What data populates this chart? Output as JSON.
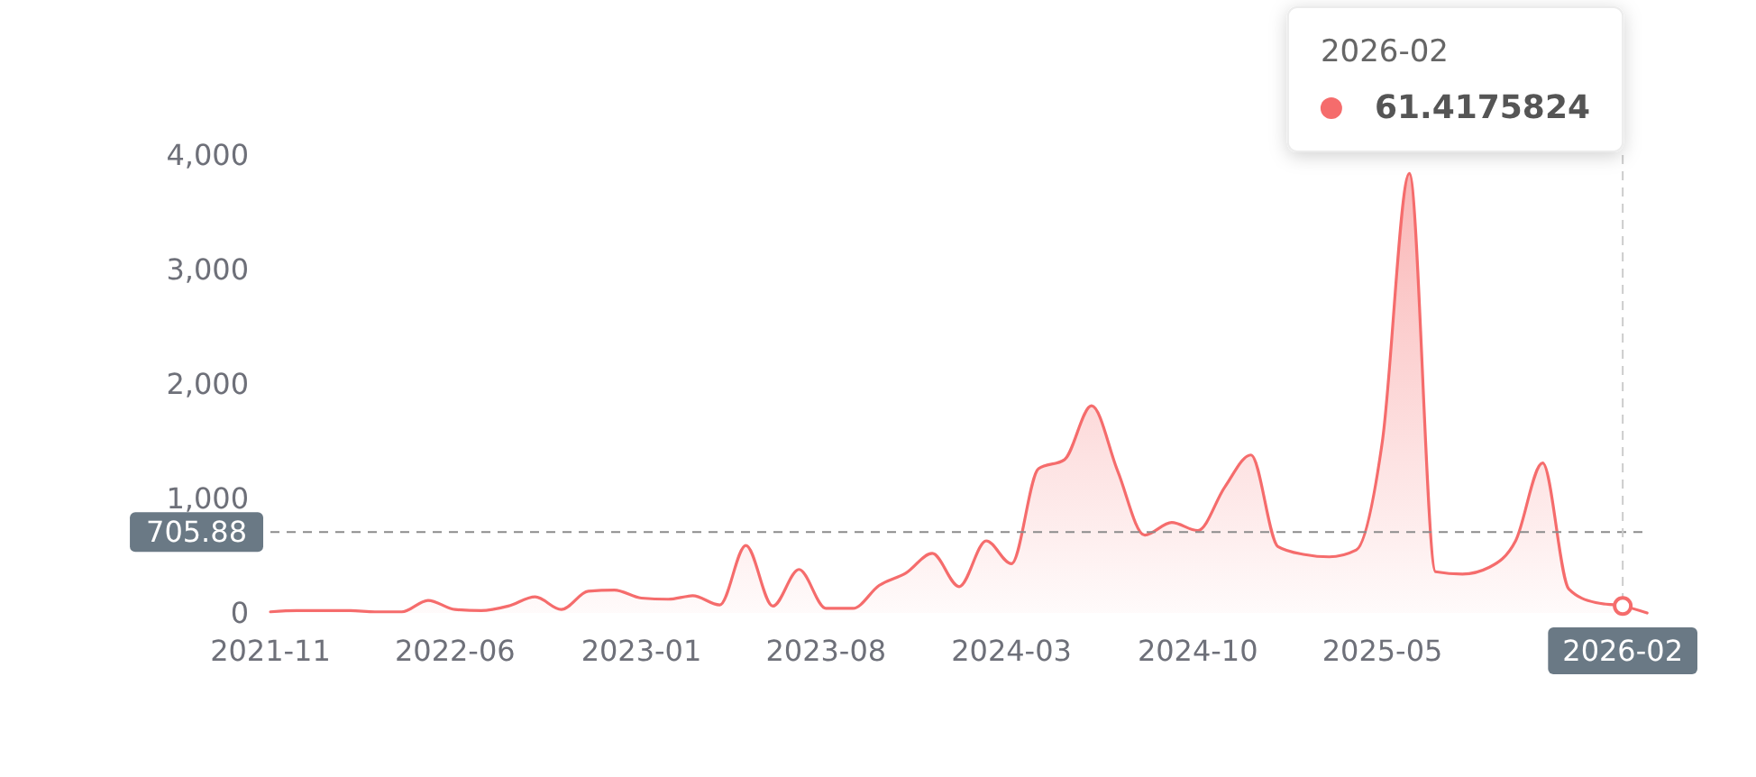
{
  "chart_data": {
    "type": "area",
    "x": [
      "2021-11",
      "2021-12",
      "2022-01",
      "2022-02",
      "2022-03",
      "2022-04",
      "2022-05",
      "2022-06",
      "2022-07",
      "2022-08",
      "2022-09",
      "2022-10",
      "2022-11",
      "2022-12",
      "2023-01",
      "2023-02",
      "2023-03",
      "2023-04",
      "2023-05",
      "2023-06",
      "2023-07",
      "2023-08",
      "2023-09",
      "2023-10",
      "2023-11",
      "2023-12",
      "2024-01",
      "2024-02",
      "2024-03",
      "2024-04",
      "2024-05",
      "2024-06",
      "2024-07",
      "2024-08",
      "2024-09",
      "2024-10",
      "2024-11",
      "2024-12",
      "2025-01",
      "2025-02",
      "2025-03",
      "2025-04",
      "2025-05",
      "2025-06",
      "2025-07",
      "2025-08",
      "2025-09",
      "2025-10",
      "2025-11",
      "2025-12",
      "2026-01",
      "2026-02",
      "2026-03"
    ],
    "values": [
      10,
      20,
      20,
      20,
      10,
      10,
      110,
      30,
      20,
      60,
      140,
      30,
      190,
      200,
      130,
      120,
      150,
      70,
      590,
      60,
      380,
      40,
      40,
      240,
      350,
      520,
      230,
      630,
      430,
      1260,
      1340,
      1810,
      1240,
      680,
      790,
      720,
      1100,
      1380,
      580,
      510,
      490,
      550,
      1500,
      3840,
      360,
      340,
      400,
      630,
      1310,
      210,
      90,
      61.4175824,
      0
    ],
    "color": "#f56c6c",
    "xlim": [
      "2021-11",
      "2026-03"
    ],
    "xticks": [
      "2021-11",
      "2022-06",
      "2023-01",
      "2023-08",
      "2024-03",
      "2024-10",
      "2025-05"
    ],
    "ylim": [
      0,
      4000
    ],
    "yticks": [
      0,
      {
        "value": 1000,
        "label": "1,000"
      },
      {
        "value": 2000,
        "label": "2,000"
      },
      {
        "value": 3000,
        "label": "3,000"
      },
      {
        "value": 4000,
        "label": "4,000"
      }
    ],
    "ref_lines": [
      {
        "axis": "y",
        "value": 705.88,
        "label": "705.88",
        "color": "#8c8c8c",
        "line_style": "dashed"
      },
      {
        "axis": "x",
        "value": "2026-02",
        "label": "2026-02",
        "color": "#cccccc",
        "line_style": "dashed"
      }
    ],
    "annotations": [
      "2026-02",
      "61.4175824"
    ]
  }
}
